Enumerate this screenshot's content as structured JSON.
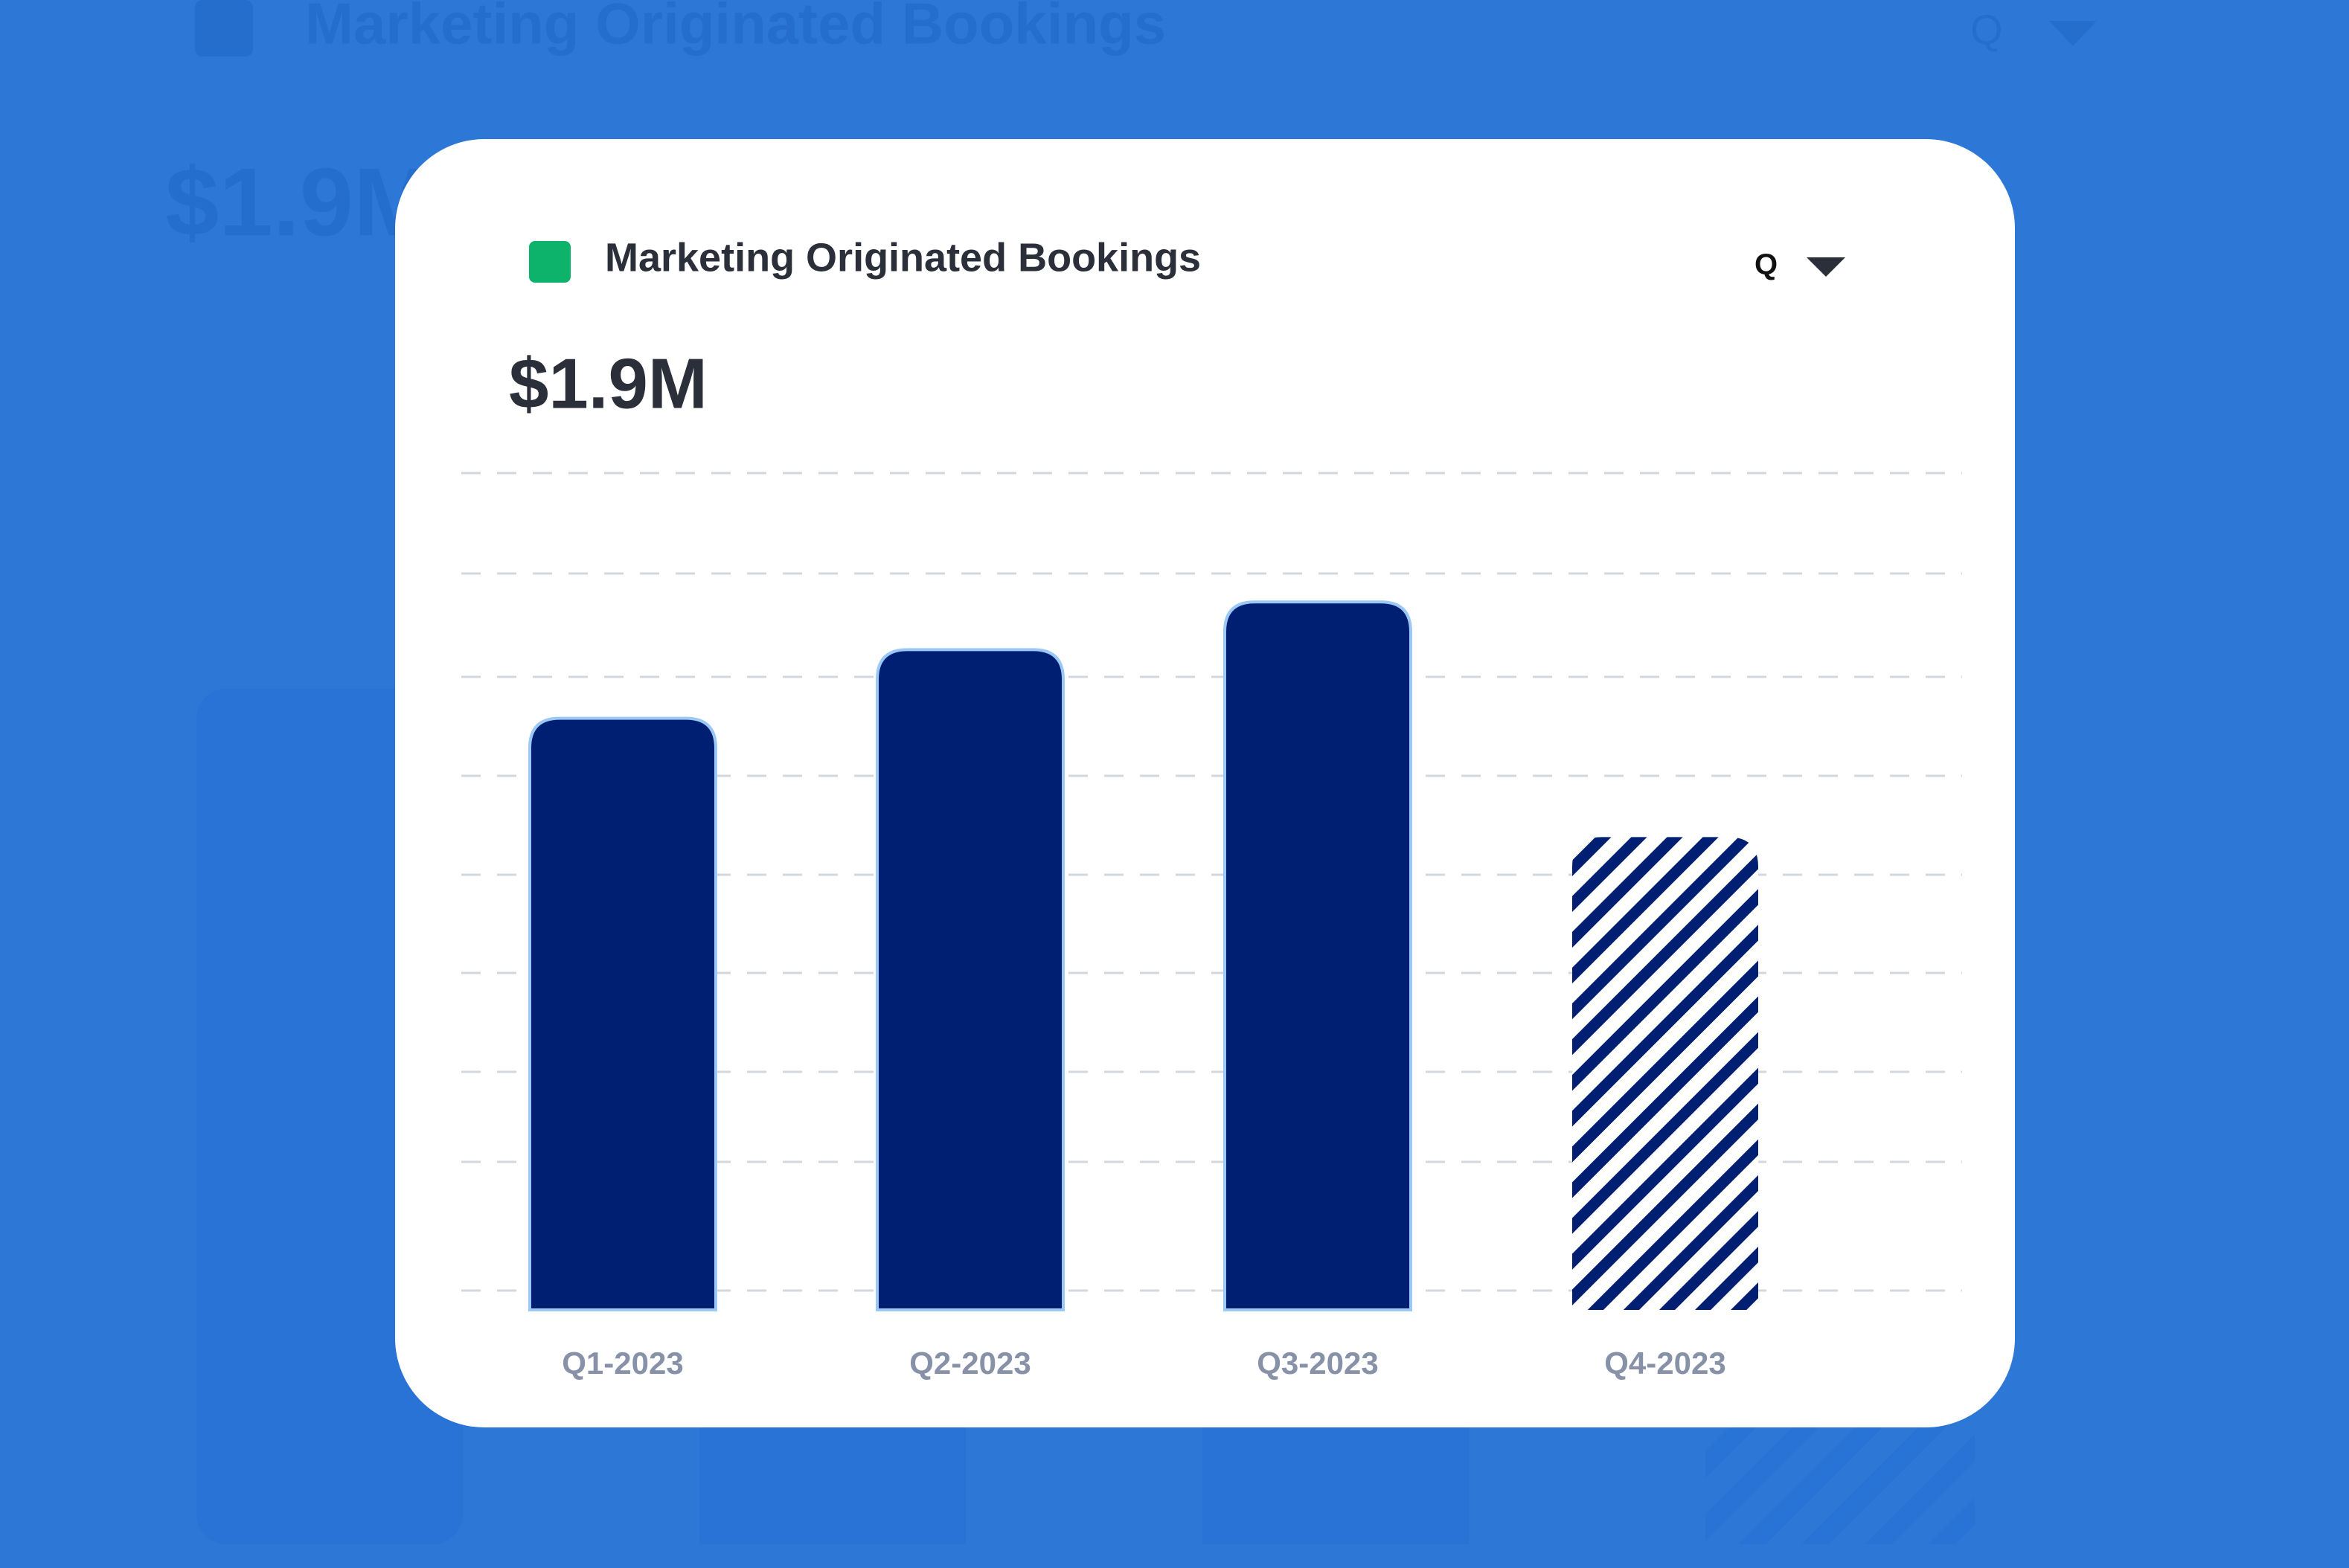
{
  "chart_data": {
    "type": "bar",
    "title": "Marketing Originated Bookings",
    "total": "$1.9M",
    "period": "Q",
    "categories": [
      "Q1-2023",
      "Q2-2023",
      "Q3-2023",
      "Q4-2023"
    ],
    "values": [
      70.7,
      78.9,
      84.6,
      56.5
    ],
    "color": "#001f73",
    "ylim": [
      0,
      100
    ],
    "grid": true
  }
}
